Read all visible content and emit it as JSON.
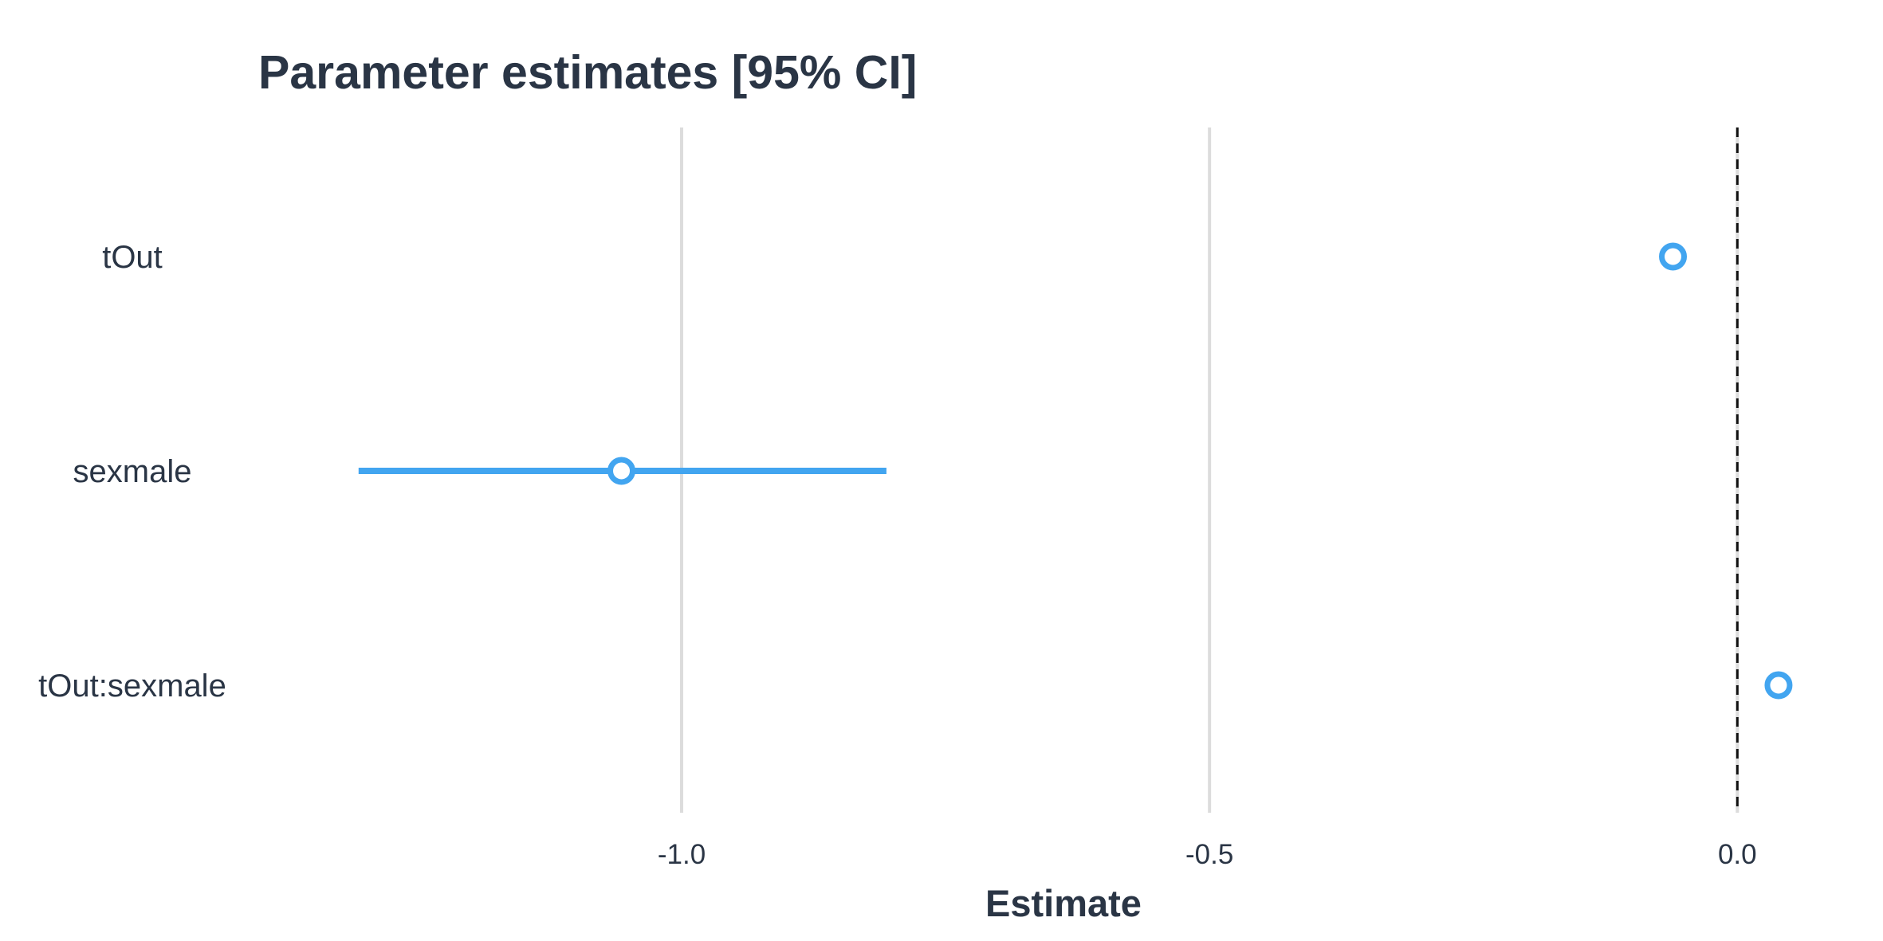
{
  "chart_data": {
    "type": "scatter",
    "title": "Parameter estimates [95% CI]",
    "xlabel": "Estimate",
    "ylabel": "",
    "xlim": [
      -1.33,
      0.07
    ],
    "xticks": [
      -1.0,
      -0.5,
      0.0
    ],
    "xtick_labels": [
      "-1.0",
      "-0.5",
      "0.0"
    ],
    "reference_line": 0.0,
    "grid": true,
    "marker_color": "#42a5f0",
    "text_color": "#2a3545",
    "grid_color": "#dcdcdc",
    "categories": [
      "tOut",
      "sexmale",
      "tOut:sexmale"
    ],
    "points": [
      {
        "label": "tOut",
        "estimate": -0.061,
        "ci_low": -0.063,
        "ci_high": -0.059
      },
      {
        "label": "sexmale",
        "estimate": -1.057,
        "ci_low": -1.306,
        "ci_high": -0.806
      },
      {
        "label": "tOut:sexmale",
        "estimate": 0.039,
        "ci_low": 0.037,
        "ci_high": 0.041
      }
    ]
  }
}
